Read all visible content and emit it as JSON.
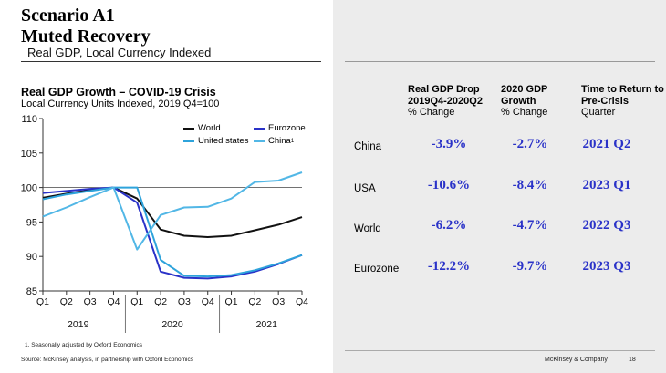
{
  "header": {
    "title_line1": "Scenario A1",
    "title_line2": "Muted Recovery",
    "subtitle": "Real GDP, Local Currency Indexed"
  },
  "chart_data": {
    "type": "line",
    "title": "Real GDP Growth – COVID-19 Crisis",
    "subtitle": "Local Currency Units Indexed, 2019 Q4=100",
    "categories": [
      "Q1",
      "Q2",
      "Q3",
      "Q4",
      "Q1",
      "Q2",
      "Q3",
      "Q4",
      "Q1",
      "Q2",
      "Q3",
      "Q4"
    ],
    "year_labels": [
      "2019",
      "2020",
      "2021"
    ],
    "ylim": [
      85,
      110
    ],
    "yticks": [
      85,
      90,
      95,
      100,
      105,
      110
    ],
    "reference_line": 100,
    "series": [
      {
        "name": "World",
        "color": "#111111",
        "values": [
          98.5,
          99.1,
          99.6,
          100,
          98.4,
          93.9,
          93.0,
          92.8,
          93.0,
          93.8,
          94.6,
          95.7
        ]
      },
      {
        "name": "Eurozone",
        "color": "#2a32c8",
        "values": [
          99.2,
          99.5,
          99.8,
          100,
          97.8,
          87.8,
          86.9,
          86.8,
          87.1,
          87.8,
          88.9,
          90.2
        ]
      },
      {
        "name": "United states",
        "color": "#2ea3db",
        "values": [
          98.3,
          99.0,
          99.5,
          100,
          100.0,
          89.5,
          87.2,
          87.1,
          87.3,
          88.0,
          89.0,
          90.2
        ]
      },
      {
        "name": "China",
        "color": "#52b7e6",
        "values": [
          95.8,
          97.1,
          98.6,
          100,
          91.0,
          96.0,
          97.1,
          97.2,
          98.4,
          100.8,
          101.0,
          102.2
        ]
      }
    ],
    "legend": [
      {
        "label": "World",
        "color": "#111111"
      },
      {
        "label": "Eurozone",
        "color": "#2a32c8"
      },
      {
        "label": "United states",
        "color": "#2ea3db"
      },
      {
        "label": "China",
        "sup": "1",
        "color": "#52b7e6"
      }
    ]
  },
  "table": {
    "headers": [
      {
        "bold1": "Real GDP Drop",
        "bold2": "2019Q4-2020Q2",
        "sub": "% Change"
      },
      {
        "bold1": "2020 GDP",
        "bold2": "Growth",
        "sub": "% Change"
      },
      {
        "bold1": "Time to Return to",
        "bold2": "Pre-Crisis",
        "sub": "Quarter"
      }
    ],
    "rows": [
      {
        "label": "China",
        "drop": "-3.9%",
        "growth": "-2.7%",
        "return": "2021 Q2"
      },
      {
        "label": "USA",
        "drop": "-10.6%",
        "growth": "-8.4%",
        "return": "2023 Q1"
      },
      {
        "label": "World",
        "drop": "-6.2%",
        "growth": "-4.7%",
        "return": "2022 Q3"
      },
      {
        "label": "Eurozone",
        "drop": "-12.2%",
        "growth": "-9.7%",
        "return": "2023 Q3"
      }
    ],
    "value_color": "#2a32c8"
  },
  "footer": {
    "footnote": "1.   Seasonally adjusted by Oxford Economics",
    "source": "Source: McKinsey analysis, in partnership with Oxford Economics",
    "company": "McKinsey & Company",
    "page": "18"
  }
}
